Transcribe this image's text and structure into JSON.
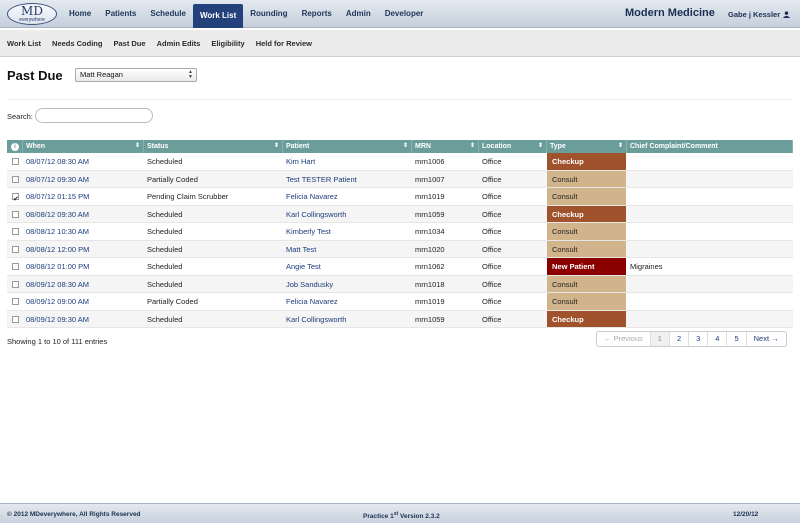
{
  "app": {
    "logo_main": "MD",
    "logo_sub": "everywhere",
    "brand": "Modern Medicine",
    "user": "Gabe j Kessler"
  },
  "nav": {
    "items": [
      "Home",
      "Patients",
      "Schedule",
      "Work List",
      "Rounding",
      "Reports",
      "Admin",
      "Developer"
    ],
    "active": "Work List"
  },
  "subnav": {
    "items": [
      "Work List",
      "Needs Coding",
      "Past Due",
      "Admin Edits",
      "Eligibility",
      "Held for Review"
    ]
  },
  "page": {
    "title": "Past Due",
    "provider_select": "Matt Reagan"
  },
  "search": {
    "label": "Search:",
    "value": ""
  },
  "table": {
    "header_icon": "info-icon",
    "columns": [
      "When",
      "Status",
      "Patient",
      "MRN",
      "Location",
      "Type",
      "Chief Complaint/Comment"
    ],
    "rows": [
      {
        "checked": false,
        "when": "08/07/12 08:30 AM",
        "status": "Scheduled",
        "patient": "Kim Hart",
        "mrn": "mrn1006",
        "location": "Office",
        "type": "Checkup",
        "comment": ""
      },
      {
        "checked": false,
        "when": "08/07/12 09:30 AM",
        "status": "Partially Coded",
        "patient": "Test TESTER Patient",
        "mrn": "mrn1007",
        "location": "Office",
        "type": "Consult",
        "comment": ""
      },
      {
        "checked": true,
        "when": "08/07/12 01:15 PM",
        "status": "Pending Claim Scrubber",
        "patient": "Felicia Navarez",
        "mrn": "mrn1019",
        "location": "Office",
        "type": "Consult",
        "comment": ""
      },
      {
        "checked": false,
        "when": "08/08/12 09:30 AM",
        "status": "Scheduled",
        "patient": "Karl Collingsworth",
        "mrn": "mrn1059",
        "location": "Office",
        "type": "Checkup",
        "comment": ""
      },
      {
        "checked": false,
        "when": "08/08/12 10:30 AM",
        "status": "Scheduled",
        "patient": "Kimberly Test",
        "mrn": "mrn1034",
        "location": "Office",
        "type": "Consult",
        "comment": ""
      },
      {
        "checked": false,
        "when": "08/08/12 12:00 PM",
        "status": "Scheduled",
        "patient": "Matt Test",
        "mrn": "mrn1020",
        "location": "Office",
        "type": "Consult",
        "comment": ""
      },
      {
        "checked": false,
        "when": "08/08/12 01:00 PM",
        "status": "Scheduled",
        "patient": "Angie Test",
        "mrn": "mrn1062",
        "location": "Office",
        "type": "New Patient",
        "comment": "Migraines"
      },
      {
        "checked": false,
        "when": "08/09/12 08:30 AM",
        "status": "Scheduled",
        "patient": "Job Sandusky",
        "mrn": "mrn1018",
        "location": "Office",
        "type": "Consult",
        "comment": ""
      },
      {
        "checked": false,
        "when": "08/09/12 09:00 AM",
        "status": "Partially Coded",
        "patient": "Felicia Navarez",
        "mrn": "mrn1019",
        "location": "Office",
        "type": "Consult",
        "comment": ""
      },
      {
        "checked": false,
        "when": "08/09/12 09:30 AM",
        "status": "Scheduled",
        "patient": "Karl Collingsworth",
        "mrn": "mrn1059",
        "location": "Office",
        "type": "Checkup",
        "comment": ""
      }
    ],
    "type_colors": {
      "Checkup": "#a0522d",
      "Consult": "#d2b48c",
      "New Patient": "#8b0000"
    }
  },
  "info": {
    "showing": "Showing 1 to 10 of 111 entries"
  },
  "pager": {
    "previous": "← Previous",
    "pages": [
      "1",
      "2",
      "3",
      "4",
      "5"
    ],
    "active_page": "1",
    "next": "Next →"
  },
  "footer": {
    "copyright": "© 2012 MDeverywhere, All Rights Reserved",
    "version_prefix": "Practice 1",
    "version_sup": "st",
    "version_suffix": " Version 2.3.2",
    "date": "12/20/12"
  }
}
